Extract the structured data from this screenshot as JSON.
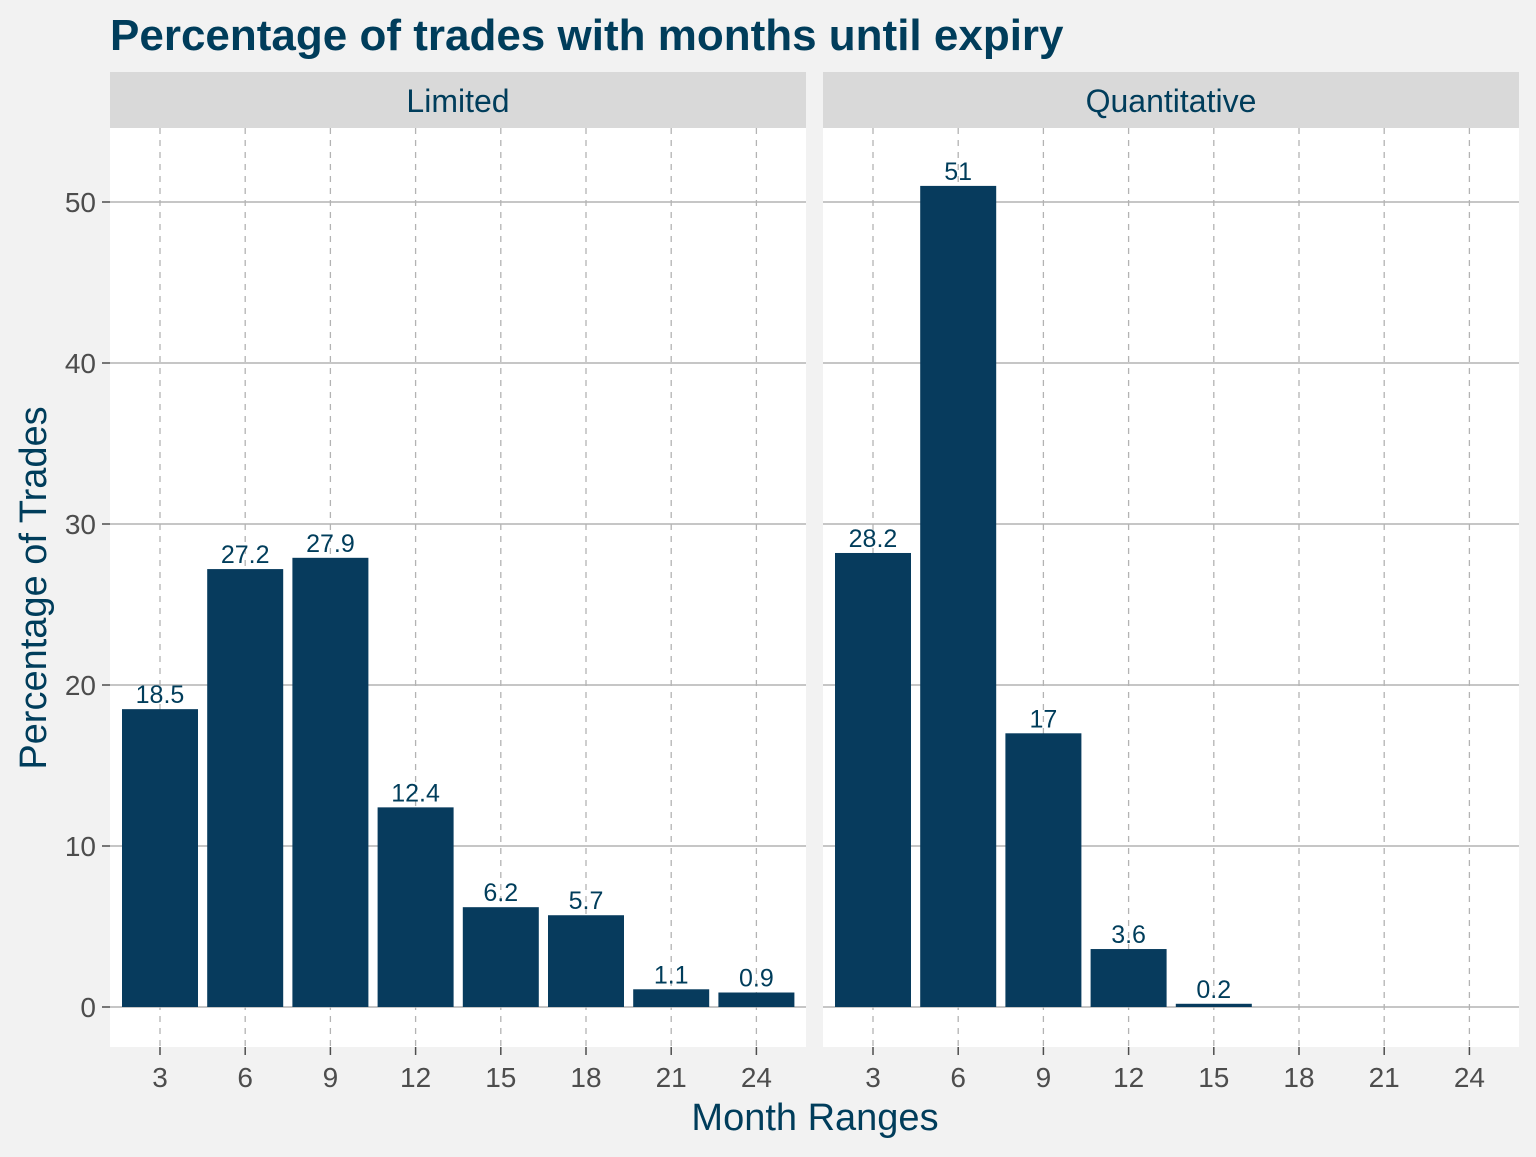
{
  "chart_data": {
    "type": "bar",
    "title": "Percentage of trades with months until expiry",
    "xlabel": "Month Ranges",
    "ylabel": "Percentage of Trades",
    "categories": [
      "3",
      "6",
      "9",
      "12",
      "15",
      "18",
      "21",
      "24"
    ],
    "ylim": [
      0,
      55
    ],
    "yticks": [
      0,
      10,
      20,
      30,
      40,
      50
    ],
    "grid": true,
    "bar_color": "#073b5d",
    "background_color": "#f2f2f2",
    "strip_color": "#d9d9d9",
    "text_color": "#003d5b",
    "panels": [
      {
        "name": "Limited",
        "values": [
          18.5,
          27.2,
          27.9,
          12.4,
          6.2,
          5.7,
          1.1,
          0.9
        ],
        "labels": [
          "18.5",
          "27.2",
          "27.9",
          "12.4",
          "6.2",
          "5.7",
          "1.1",
          "0.9"
        ]
      },
      {
        "name": "Quantitative",
        "values": [
          28.2,
          51,
          17,
          3.6,
          0.2,
          null,
          null,
          null
        ],
        "labels": [
          "28.2",
          "51",
          "17",
          "3.6",
          "0.2",
          "",
          "",
          ""
        ]
      }
    ]
  }
}
